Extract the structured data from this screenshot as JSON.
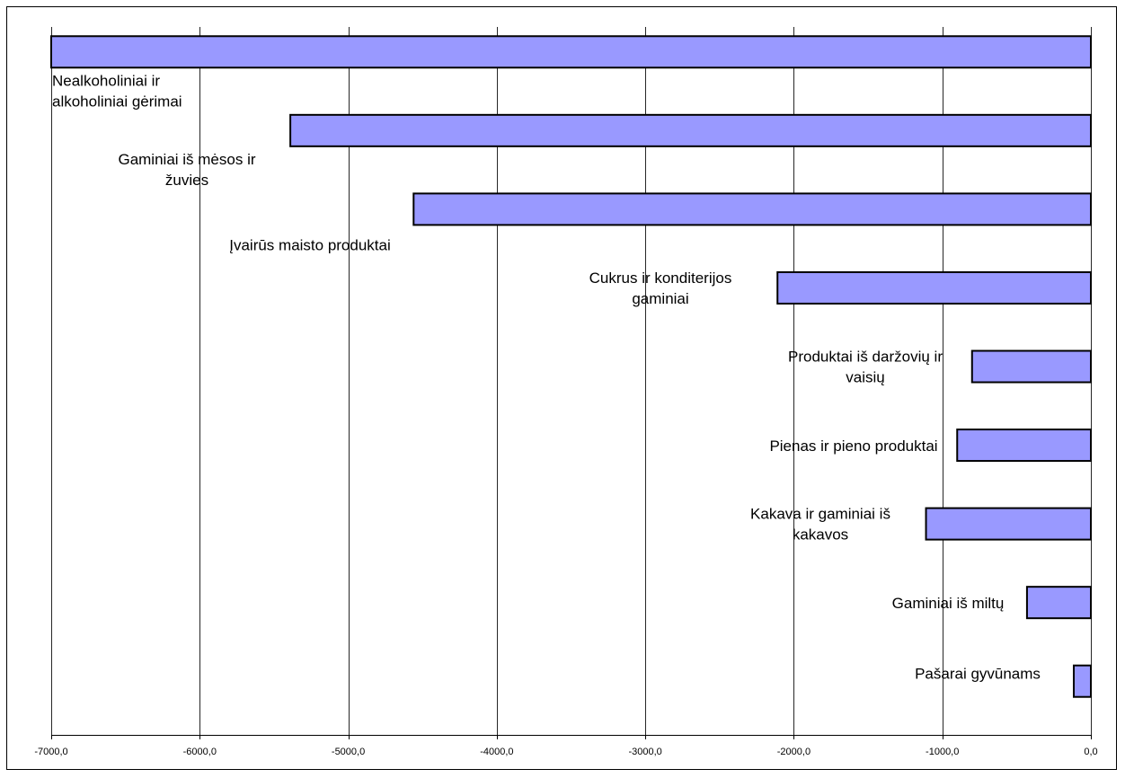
{
  "chart_data": {
    "type": "bar",
    "orientation": "horizontal",
    "title": "",
    "xlabel": "",
    "ylabel": "",
    "xlim": [
      -7000,
      0
    ],
    "x_ticks": [
      -7000,
      -6000,
      -5000,
      -4000,
      -3000,
      -2000,
      -1000,
      0
    ],
    "x_tick_labels": [
      "-7000,0",
      "-6000,0",
      "-5000,0",
      "-4000,0",
      "-3000,0",
      "-2000,0",
      "-1000,0",
      "0,0"
    ],
    "grid": "vertical",
    "legend": "none",
    "bar_color": "#9999ff",
    "bar_border_color": "#000000",
    "categories": [
      {
        "lines": [
          "Nealkoholiniai ir",
          "alkoholiniai gėrimai"
        ],
        "value": -7000
      },
      {
        "lines": [
          "Gaminiai iš mėsos ir",
          "žuvies"
        ],
        "value": -5390
      },
      {
        "lines": [
          "Įvairūs maisto produktai"
        ],
        "value": -4560
      },
      {
        "lines": [
          "Cukrus ir konditerijos",
          "gaminiai"
        ],
        "value": -2110
      },
      {
        "lines": [
          "Produktai iš daržovių ir",
          "vaisių"
        ],
        "value": -800
      },
      {
        "lines": [
          "Pienas ir pieno produktai"
        ],
        "value": -900
      },
      {
        "lines": [
          "Kakava ir gaminiai iš",
          "kakavos"
        ],
        "value": -1110
      },
      {
        "lines": [
          "Gaminiai iš miltų"
        ],
        "value": -430
      },
      {
        "lines": [
          "Pašarai gyvūnams"
        ],
        "value": -115
      }
    ]
  }
}
